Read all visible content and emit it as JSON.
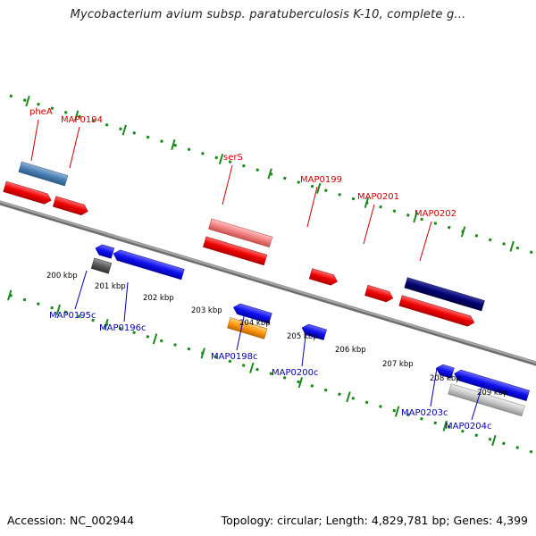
{
  "title": "Mycobacterium avium subsp. paratuberculosis K-10, complete g...",
  "footer": {
    "accession": "Accession: NC_002944",
    "topology": "Topology: circular; Length: 4,829,781 bp; Genes: 4,399"
  },
  "colors": {
    "backbone": "#8a8a8a",
    "dots": "#1a8a1a",
    "forward_label": "#cc0000",
    "reverse_label": "#0000aa"
  },
  "ticks": [
    "200 kbp",
    "201 kbp",
    "202 kbp",
    "203 kbp",
    "204 kbp",
    "205 kbp",
    "206 kbp",
    "207 kbp",
    "208 kbp",
    "209 kbp"
  ],
  "genes_forward": [
    "pheA",
    "MAP0194",
    "serS",
    "MAP0199",
    "MAP0201",
    "MAP0202"
  ],
  "genes_reverse": [
    "MAP0195c",
    "MAP0196c",
    "MAP0198c",
    "MAP0200c",
    "MAP0203c",
    "MAP0204c"
  ]
}
